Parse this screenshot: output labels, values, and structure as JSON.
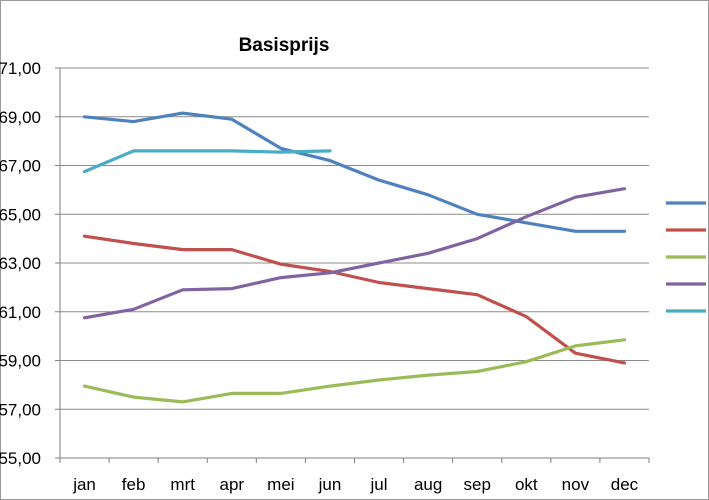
{
  "chart_data": {
    "type": "line",
    "title": "Basisprijs",
    "xlabel": "",
    "ylabel": "",
    "categories": [
      "jan",
      "feb",
      "mrt",
      "apr",
      "mei",
      "jun",
      "jul",
      "aug",
      "sep",
      "okt",
      "nov",
      "dec"
    ],
    "ylim": [
      55,
      71
    ],
    "yticks": [
      55,
      57,
      59,
      61,
      63,
      65,
      67,
      69,
      71
    ],
    "ytick_labels": [
      "55,00",
      "57,00",
      "59,00",
      "61,00",
      "63,00",
      "65,00",
      "67,00",
      "69,00",
      "71,00"
    ],
    "grid": true,
    "legend": "right",
    "series": [
      {
        "color": "#4f81bd",
        "values": [
          69.0,
          68.8,
          69.15,
          68.9,
          67.7,
          67.2,
          66.4,
          65.8,
          65.0,
          64.65,
          64.3,
          64.3
        ]
      },
      {
        "color": "#c0504d",
        "values": [
          64.1,
          63.8,
          63.55,
          63.55,
          62.95,
          62.65,
          62.2,
          61.95,
          61.7,
          60.8,
          59.3,
          58.9
        ]
      },
      {
        "color": "#9bbb59",
        "values": [
          57.95,
          57.5,
          57.3,
          57.65,
          57.65,
          57.95,
          58.2,
          58.4,
          58.55,
          58.95,
          59.6,
          59.85
        ]
      },
      {
        "color": "#8064a2",
        "values": [
          60.75,
          61.1,
          61.9,
          61.95,
          62.4,
          62.6,
          63.0,
          63.4,
          64.0,
          64.9,
          65.7,
          66.05
        ]
      },
      {
        "color": "#4bacc6",
        "values": [
          66.75,
          67.6,
          67.6,
          67.6,
          67.55,
          67.6,
          null,
          null,
          null,
          null,
          null,
          null
        ]
      }
    ]
  }
}
